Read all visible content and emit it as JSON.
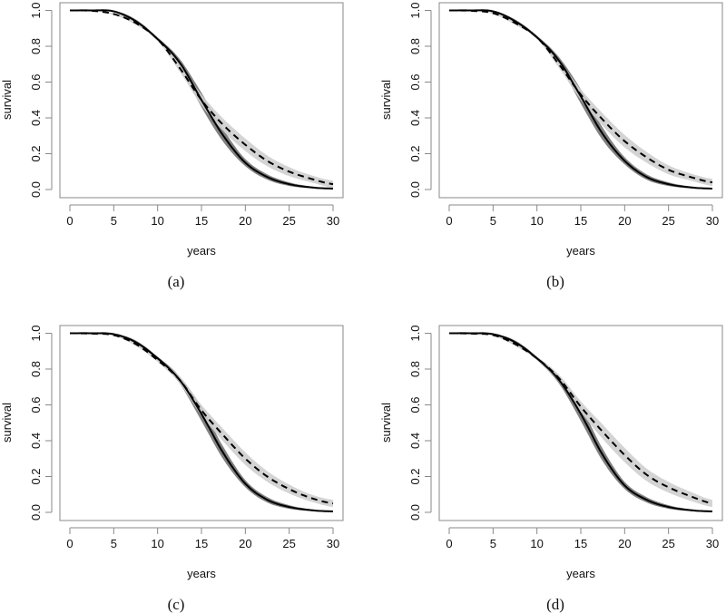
{
  "chart_data": [
    {
      "type": "line",
      "caption": "(a)",
      "xlabel": "years",
      "ylabel": "survival",
      "xlim": [
        0,
        30
      ],
      "ylim": [
        0,
        1
      ],
      "xticks": [
        "0",
        "5",
        "10",
        "15",
        "20",
        "25",
        "30"
      ],
      "yticks": [
        "0.0",
        "0.2",
        "0.4",
        "0.6",
        "0.8",
        "1.0"
      ],
      "x": [
        0,
        2.5,
        5,
        7.5,
        10,
        12.5,
        15,
        17.5,
        20,
        22.5,
        25,
        27.5,
        30
      ],
      "series": [
        {
          "name": "solid",
          "style": "solid",
          "band_color": "#7a7a7a",
          "values": [
            1,
            1,
            0.995,
            0.94,
            0.84,
            0.71,
            0.5,
            0.3,
            0.15,
            0.07,
            0.03,
            0.012,
            0.005
          ],
          "band": [
            0,
            0,
            0.004,
            0.01,
            0.01,
            0.02,
            0.04,
            0.035,
            0.02,
            0.015,
            0.01,
            0.005,
            0.004
          ]
        },
        {
          "name": "dashed",
          "style": "dashed",
          "band_color": "#cfcfcf",
          "values": [
            1,
            0.998,
            0.98,
            0.93,
            0.84,
            0.68,
            0.5,
            0.36,
            0.25,
            0.16,
            0.1,
            0.06,
            0.03
          ],
          "band": [
            0,
            0,
            0.005,
            0.01,
            0.01,
            0.02,
            0.03,
            0.035,
            0.035,
            0.03,
            0.025,
            0.02,
            0.02
          ]
        }
      ]
    },
    {
      "type": "line",
      "caption": "(b)",
      "xlabel": "years",
      "ylabel": "survival",
      "xlim": [
        0,
        30
      ],
      "ylim": [
        0,
        1
      ],
      "xticks": [
        "0",
        "5",
        "10",
        "15",
        "20",
        "25",
        "30"
      ],
      "yticks": [
        "0.0",
        "0.2",
        "0.4",
        "0.6",
        "0.8",
        "1.0"
      ],
      "x": [
        0,
        2.5,
        5,
        7.5,
        10,
        12.5,
        15,
        17.5,
        20,
        22.5,
        25,
        27.5,
        30
      ],
      "series": [
        {
          "name": "solid",
          "style": "solid",
          "band_color": "#7a7a7a",
          "values": [
            1,
            1,
            0.995,
            0.94,
            0.85,
            0.72,
            0.52,
            0.31,
            0.16,
            0.07,
            0.03,
            0.012,
            0.005
          ],
          "band": [
            0,
            0,
            0.004,
            0.01,
            0.01,
            0.02,
            0.04,
            0.035,
            0.02,
            0.015,
            0.01,
            0.005,
            0.004
          ]
        },
        {
          "name": "dashed",
          "style": "dashed",
          "band_color": "#cfcfcf",
          "values": [
            1,
            0.998,
            0.985,
            0.93,
            0.85,
            0.7,
            0.53,
            0.39,
            0.27,
            0.18,
            0.11,
            0.07,
            0.04
          ],
          "band": [
            0,
            0,
            0.005,
            0.01,
            0.01,
            0.02,
            0.03,
            0.035,
            0.035,
            0.03,
            0.025,
            0.02,
            0.02
          ]
        }
      ]
    },
    {
      "type": "line",
      "caption": "(c)",
      "xlabel": "years",
      "ylabel": "survival",
      "xlim": [
        0,
        30
      ],
      "ylim": [
        0,
        1
      ],
      "xticks": [
        "0",
        "5",
        "10",
        "15",
        "20",
        "25",
        "30"
      ],
      "yticks": [
        "0.0",
        "0.2",
        "0.4",
        "0.6",
        "0.8",
        "1.0"
      ],
      "x": [
        0,
        2.5,
        5,
        7.5,
        10,
        12.5,
        15,
        17.5,
        20,
        22.5,
        25,
        27.5,
        30
      ],
      "series": [
        {
          "name": "solid",
          "style": "solid",
          "band_color": "#7a7a7a",
          "values": [
            1,
            1,
            0.995,
            0.95,
            0.86,
            0.74,
            0.55,
            0.33,
            0.16,
            0.07,
            0.03,
            0.012,
            0.005
          ],
          "band": [
            0,
            0,
            0.004,
            0.01,
            0.01,
            0.02,
            0.04,
            0.035,
            0.02,
            0.015,
            0.01,
            0.005,
            0.004
          ]
        },
        {
          "name": "dashed",
          "style": "dashed",
          "band_color": "#cfcfcf",
          "values": [
            1,
            0.998,
            0.99,
            0.94,
            0.85,
            0.74,
            0.57,
            0.43,
            0.3,
            0.2,
            0.13,
            0.08,
            0.05
          ],
          "band": [
            0,
            0,
            0.005,
            0.01,
            0.01,
            0.02,
            0.03,
            0.035,
            0.035,
            0.03,
            0.025,
            0.02,
            0.02
          ]
        }
      ]
    },
    {
      "type": "line",
      "caption": "(d)",
      "xlabel": "years",
      "ylabel": "survival",
      "xlim": [
        0,
        30
      ],
      "ylim": [
        0,
        1
      ],
      "xticks": [
        "0",
        "5",
        "10",
        "15",
        "20",
        "25",
        "30"
      ],
      "yticks": [
        "0.0",
        "0.2",
        "0.4",
        "0.6",
        "0.8",
        "1.0"
      ],
      "x": [
        0,
        2.5,
        5,
        7.5,
        10,
        12.5,
        15,
        17.5,
        20,
        22.5,
        25,
        27.5,
        30
      ],
      "series": [
        {
          "name": "solid",
          "style": "solid",
          "band_color": "#7a7a7a",
          "values": [
            1,
            1,
            0.995,
            0.95,
            0.86,
            0.74,
            0.55,
            0.32,
            0.15,
            0.07,
            0.03,
            0.012,
            0.005
          ],
          "band": [
            0,
            0,
            0.004,
            0.01,
            0.01,
            0.02,
            0.04,
            0.035,
            0.02,
            0.015,
            0.01,
            0.005,
            0.004
          ]
        },
        {
          "name": "dashed",
          "style": "dashed",
          "band_color": "#cfcfcf",
          "values": [
            1,
            0.998,
            0.99,
            0.94,
            0.86,
            0.75,
            0.59,
            0.45,
            0.32,
            0.21,
            0.14,
            0.09,
            0.05
          ],
          "band": [
            0,
            0,
            0.005,
            0.01,
            0.01,
            0.02,
            0.03,
            0.04,
            0.04,
            0.035,
            0.03,
            0.025,
            0.02
          ]
        }
      ]
    }
  ]
}
